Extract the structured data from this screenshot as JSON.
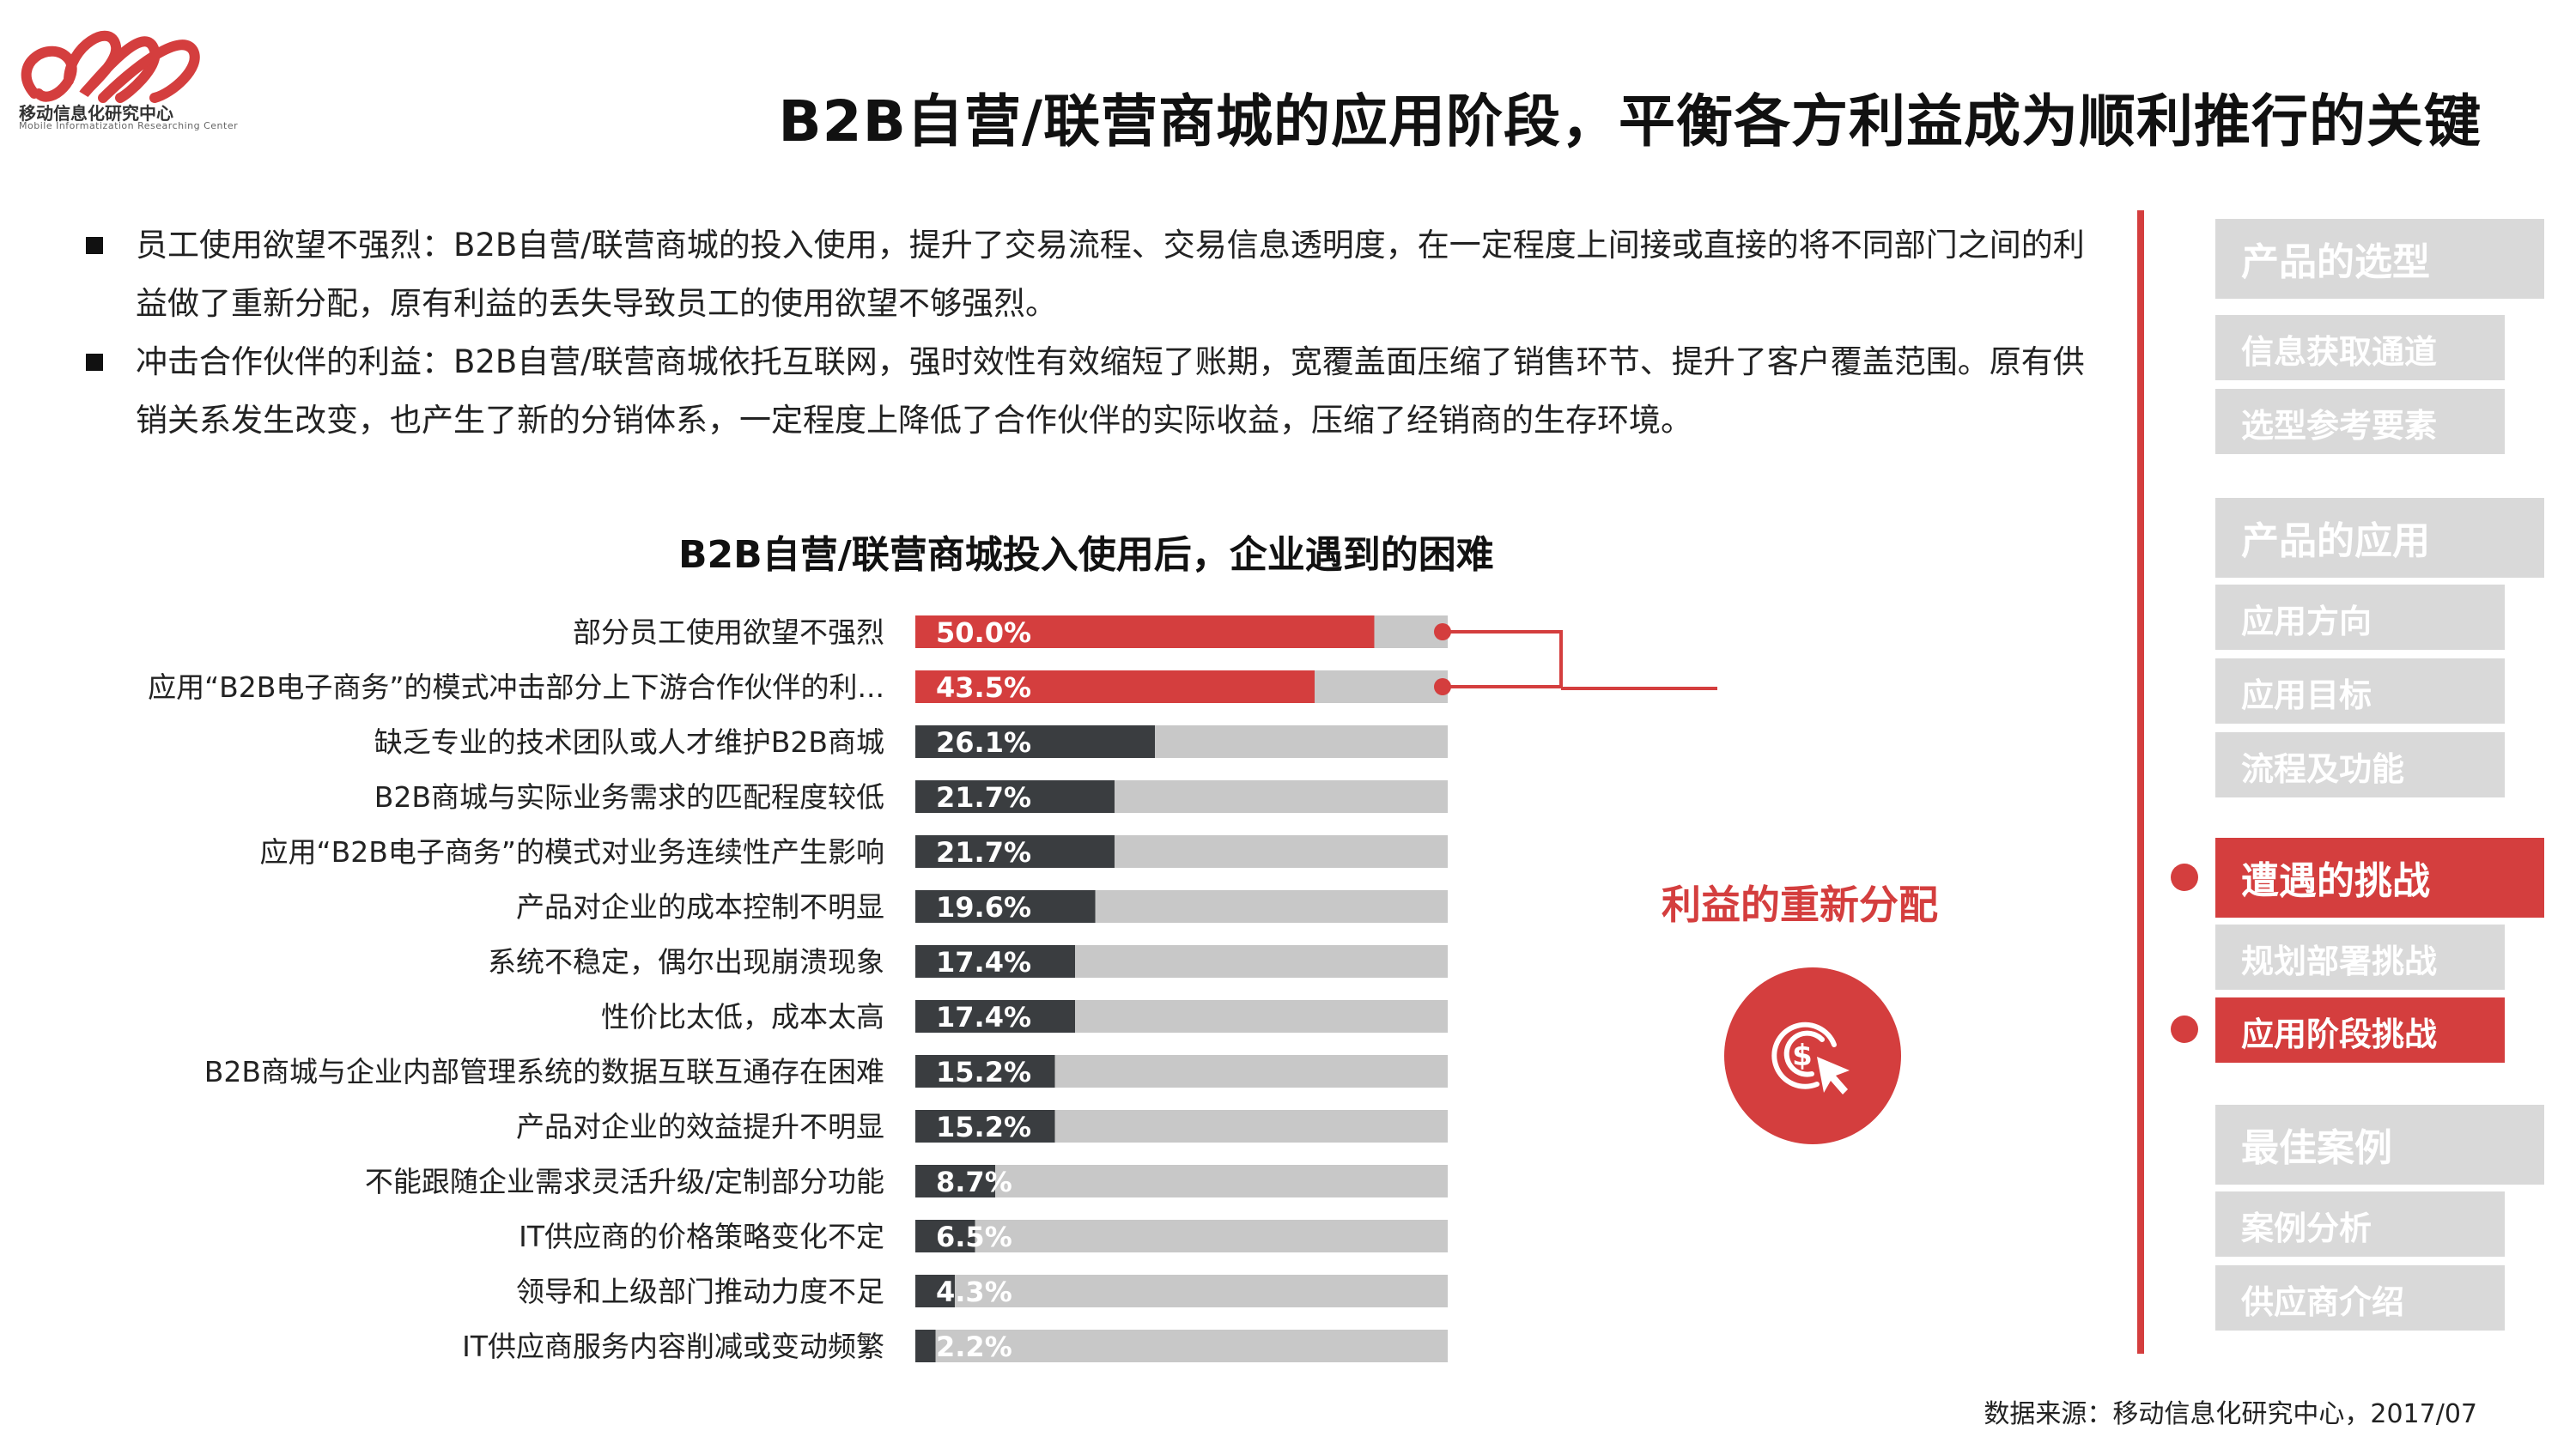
{
  "logo": {
    "org_name": "移动信息化研究中心",
    "org_name_en": "Mobile Informatization Researching Center"
  },
  "header": {
    "title": "B2B自营/联营商城的应用阶段，平衡各方利益成为顺利推行的关键"
  },
  "bullets": [
    "员工使用欲望不强烈：B2B自营/联营商城的投入使用，提升了交易流程、交易信息透明度，在一定程度上间接或直接的将不同部门之间的利益做了重新分配，原有利益的丢失导致员工的使用欲望不够强烈。",
    "冲击合作伙伴的利益：B2B自营/联营商城依托互联网，强时效性有效缩短了账期，宽覆盖面压缩了销售环节、提升了客户覆盖范围。原有供销关系发生改变，也产生了新的分销体系，一定程度上降低了合作伙伴的实际收益，压缩了经销商的生存环境。"
  ],
  "chart_data": {
    "type": "bar",
    "orientation": "horizontal",
    "title": "B2B自营/联营商城投入使用后，企业遇到的困难",
    "categories": [
      "部分员工使用欲望不强烈",
      "应用“B2B电子商务”的模式冲击部分上下游合作伙伴的利...",
      "缺乏专业的技术团队或人才维护B2B商城",
      "B2B商城与实际业务需求的匹配程度较低",
      "应用“B2B电子商务”的模式对业务连续性产生影响",
      "产品对企业的成本控制不明显",
      "系统不稳定，偶尔出现崩溃现象",
      "性价比太低，成本太高",
      "B2B商城与企业内部管理系统的数据互联互通存在困难",
      "产品对企业的效益提升不明显",
      "不能跟随企业需求灵活升级/定制部分功能",
      "IT供应商的价格策略变化不定",
      "领导和上级部门推动力度不足",
      "IT供应商服务内容削减或变动频繁"
    ],
    "values": [
      50.0,
      43.5,
      26.1,
      21.7,
      21.7,
      19.6,
      17.4,
      17.4,
      15.2,
      15.2,
      8.7,
      6.5,
      4.3,
      2.2
    ],
    "value_labels": [
      "50.0%",
      "43.5%",
      "26.1%",
      "21.7%",
      "21.7%",
      "19.6%",
      "17.4%",
      "17.4%",
      "15.2%",
      "15.2%",
      "8.7%",
      "6.5%",
      "4.3%",
      "2.2%"
    ],
    "highlighted": [
      0,
      1
    ],
    "xlim": [
      0,
      58
    ],
    "colors": {
      "highlight": "#d43e3e",
      "normal": "#3a3d40",
      "track": "#c8c8c8",
      "label_text": "#ffffff"
    },
    "grid": false,
    "legend": "none",
    "annotation": {
      "text": "利益的重新分配",
      "icon": "dollar-cursor-icon",
      "applies_to": [
        0,
        1
      ]
    }
  },
  "sidebar": {
    "sections": [
      {
        "label": "产品的选型",
        "active": false,
        "items": [
          {
            "label": "信息获取通道",
            "active": false
          },
          {
            "label": "选型参考要素",
            "active": false
          }
        ]
      },
      {
        "label": "产品的应用",
        "active": false,
        "items": [
          {
            "label": "应用方向",
            "active": false
          },
          {
            "label": "应用目标",
            "active": false
          },
          {
            "label": "流程及功能",
            "active": false
          }
        ]
      },
      {
        "label": "遭遇的挑战",
        "active": true,
        "items": [
          {
            "label": "规划部署挑战",
            "active": false
          },
          {
            "label": "应用阶段挑战",
            "active": true
          }
        ]
      },
      {
        "label": "最佳案例",
        "active": false,
        "items": [
          {
            "label": "案例分析",
            "active": false
          },
          {
            "label": "供应商介绍",
            "active": false
          }
        ]
      }
    ]
  },
  "footer": {
    "source": "数据来源：移动信息化研究中心，2017/07"
  }
}
